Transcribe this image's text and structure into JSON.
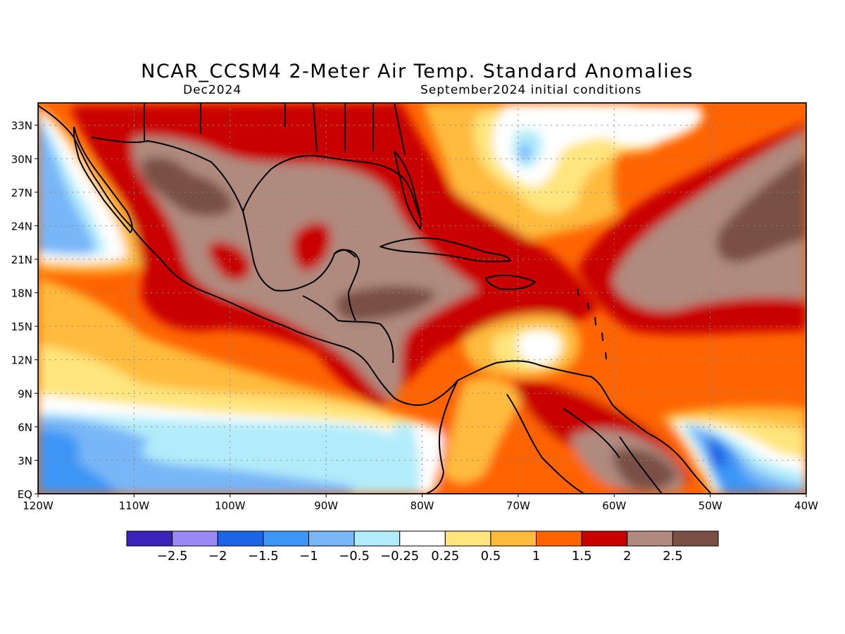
{
  "title": "NCAR_CCSM4 2-Meter Air Temp. Standard Anomalies",
  "subtitle_left": "Dec2024",
  "subtitle_right": "September2024 initial conditions",
  "map": {
    "projection": "lat-lon",
    "lon_range": [
      -120,
      -40
    ],
    "lat_range": [
      0,
      35
    ],
    "grid": "dotted",
    "x_ticks": [
      {
        "lon": -120,
        "label": "120W"
      },
      {
        "lon": -110,
        "label": "110W"
      },
      {
        "lon": -100,
        "label": "100W"
      },
      {
        "lon": -90,
        "label": "90W"
      },
      {
        "lon": -80,
        "label": "80W"
      },
      {
        "lon": -70,
        "label": "70W"
      },
      {
        "lon": -60,
        "label": "60W"
      },
      {
        "lon": -50,
        "label": "50W"
      },
      {
        "lon": -40,
        "label": "40W"
      }
    ],
    "y_ticks": [
      {
        "lat": 0,
        "label": "EQ"
      },
      {
        "lat": 3,
        "label": "3N"
      },
      {
        "lat": 6,
        "label": "6N"
      },
      {
        "lat": 9,
        "label": "9N"
      },
      {
        "lat": 12,
        "label": "12N"
      },
      {
        "lat": 15,
        "label": "15N"
      },
      {
        "lat": 18,
        "label": "18N"
      },
      {
        "lat": 21,
        "label": "21N"
      },
      {
        "lat": 24,
        "label": "24N"
      },
      {
        "lat": 27,
        "label": "27N"
      },
      {
        "lat": 30,
        "label": "30N"
      },
      {
        "lat": 33,
        "label": "33N"
      }
    ]
  },
  "colorbar": {
    "colors": [
      "#3b22b8",
      "#9a88f4",
      "#1e64e6",
      "#3c96f5",
      "#78b6f8",
      "#b2ecfa",
      "#ffffff",
      "#ffe57d",
      "#ffbb3c",
      "#ff6400",
      "#c80000",
      "#b08a7e",
      "#7a5045"
    ],
    "labels": [
      "-2.5",
      "-2",
      "-1.5",
      "-1",
      "-0.5",
      "-0.25",
      "0.25",
      "0.5",
      "1",
      "1.5",
      "2",
      "2.5"
    ]
  }
}
